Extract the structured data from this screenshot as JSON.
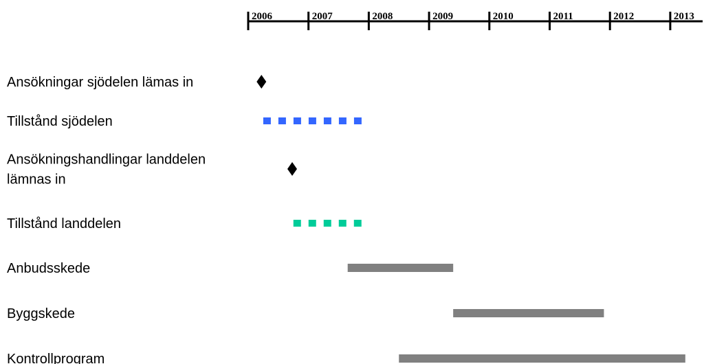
{
  "chart_data": {
    "type": "gantt",
    "title": "",
    "axis": {
      "ticks": [
        2006,
        2007,
        2008,
        2009,
        2010,
        2011,
        2012,
        2013
      ],
      "tick_labels": [
        "2006",
        "2007",
        "2008",
        "2009",
        "2010",
        "2011",
        "2012",
        "2013"
      ],
      "range": [
        2006,
        2013.6
      ],
      "position": "top"
    },
    "tasks": [
      {
        "label": [
          "Ansökningar sjödelen lämas in"
        ],
        "kind": "milestone",
        "at": 2006.22,
        "color": "#000000"
      },
      {
        "label": [
          "Tillstånd sjödelen"
        ],
        "kind": "dashed",
        "start": 2006.25,
        "end": 2008.0,
        "color": "#3366ff"
      },
      {
        "label": [
          "Ansökningshandlingar landdelen",
          "lämnas in"
        ],
        "kind": "milestone",
        "at": 2006.73,
        "color": "#000000"
      },
      {
        "label": [
          "Tillstånd landdelen"
        ],
        "kind": "dashed",
        "start": 2006.75,
        "end": 2008.0,
        "color": "#00cc99"
      },
      {
        "label": [
          "Anbudsskede"
        ],
        "kind": "bar",
        "start": 2007.65,
        "end": 2009.4,
        "color": "#808080"
      },
      {
        "label": [
          "Byggskede"
        ],
        "kind": "bar",
        "start": 2009.4,
        "end": 2011.9,
        "color": "#808080"
      },
      {
        "label": [
          "Kontrollprogram"
        ],
        "kind": "bar",
        "start": 2008.5,
        "end": 2013.25,
        "color": "#808080"
      }
    ]
  }
}
